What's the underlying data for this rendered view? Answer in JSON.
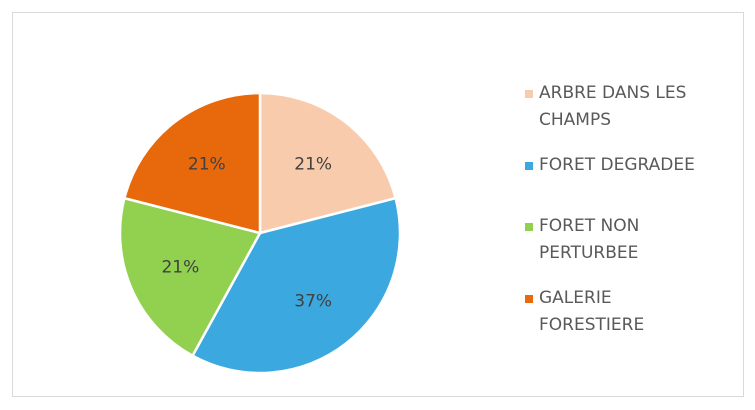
{
  "chart_data": {
    "type": "pie",
    "categories": [
      "ARBRE DANS LES CHAMPS",
      "FORET DEGRADEE",
      "FORET NON PERTURBEE",
      "GALERIE FORESTIERE"
    ],
    "values": [
      21,
      37,
      21,
      21
    ],
    "value_labels": [
      "21%",
      "37%",
      "21%",
      "21%"
    ],
    "colors": [
      "#f8cbad",
      "#3ba9e0",
      "#92d050",
      "#e8690b"
    ],
    "legend": "right"
  }
}
